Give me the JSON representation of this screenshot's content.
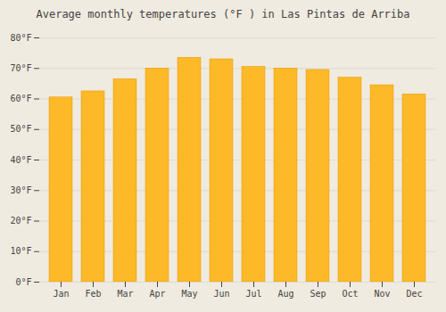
{
  "chart_data": {
    "type": "bar",
    "title": "Average monthly temperatures (°F ) in Las Pintas de Arriba",
    "categories": [
      "Jan",
      "Feb",
      "Mar",
      "Apr",
      "May",
      "Jun",
      "Jul",
      "Aug",
      "Sep",
      "Oct",
      "Nov",
      "Dec"
    ],
    "values": [
      60.5,
      62.5,
      66.5,
      70.0,
      73.5,
      73.0,
      70.5,
      70.0,
      69.5,
      67.0,
      64.5,
      61.5
    ],
    "color": "#FDB927",
    "ylim": [
      0,
      80
    ],
    "yticks": [
      {
        "value": 0,
        "label": "0°F"
      },
      {
        "value": 10,
        "label": "10°F"
      },
      {
        "value": 20,
        "label": "20°F"
      },
      {
        "value": 30,
        "label": "30°F"
      },
      {
        "value": 40,
        "label": "40°F"
      },
      {
        "value": 50,
        "label": "50°F"
      },
      {
        "value": 60,
        "label": "60°F"
      },
      {
        "value": 70,
        "label": "70°F"
      },
      {
        "value": 80,
        "label": "80°F"
      }
    ],
    "grid": true
  }
}
